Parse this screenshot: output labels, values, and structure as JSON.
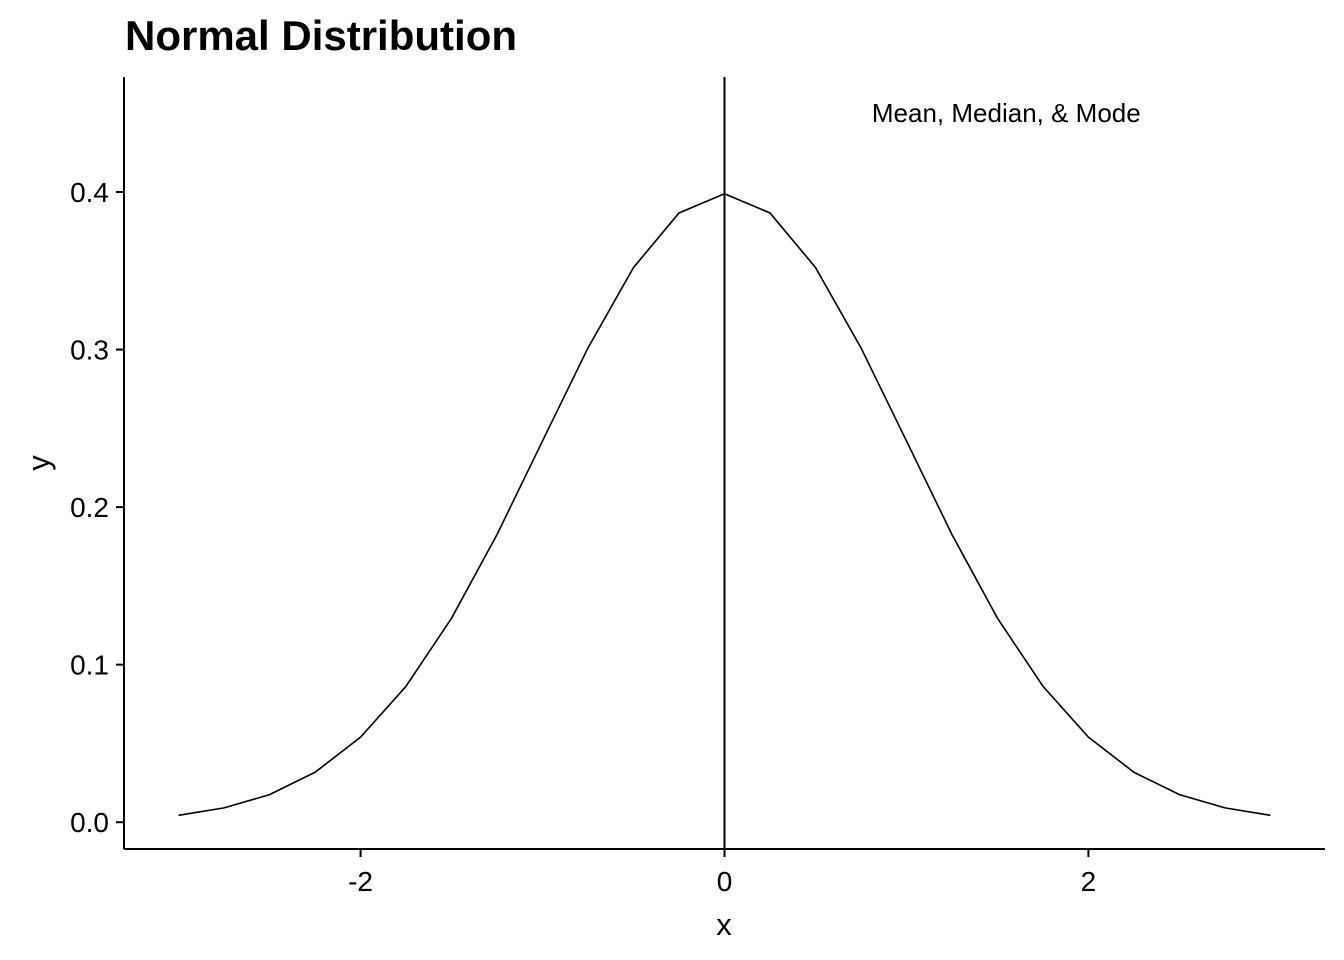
{
  "chart_data": {
    "type": "line",
    "title": "Normal Distribution",
    "xlabel": "x",
    "ylabel": "y",
    "xlim": [
      -3.3,
      3.3
    ],
    "ylim": [
      -0.017,
      0.473
    ],
    "x_ticks": [
      {
        "value": -2,
        "label": "-2"
      },
      {
        "value": 0,
        "label": "0"
      },
      {
        "value": 2,
        "label": "2"
      }
    ],
    "y_ticks": [
      {
        "value": 0.0,
        "label": "0.0"
      },
      {
        "value": 0.1,
        "label": "0.1"
      },
      {
        "value": 0.2,
        "label": "0.2"
      },
      {
        "value": 0.3,
        "label": "0.3"
      },
      {
        "value": 0.4,
        "label": "0.4"
      }
    ],
    "grid": false,
    "series": [
      {
        "x": [
          -3.0,
          -2.75,
          -2.5,
          -2.25,
          -2.0,
          -1.75,
          -1.5,
          -1.25,
          -1.0,
          -0.75,
          -0.5,
          -0.25,
          0.0,
          0.25,
          0.5,
          0.75,
          1.0,
          1.25,
          1.5,
          1.75,
          2.0,
          2.25,
          2.5,
          2.75,
          3.0
        ],
        "y": [
          0.0044,
          0.0091,
          0.0175,
          0.0317,
          0.054,
          0.0863,
          0.1295,
          0.1826,
          0.242,
          0.3011,
          0.3521,
          0.3867,
          0.3989,
          0.3867,
          0.3521,
          0.3011,
          0.242,
          0.1826,
          0.1295,
          0.0863,
          0.054,
          0.0317,
          0.0175,
          0.0091,
          0.0044
        ]
      }
    ],
    "vline": {
      "x": 0
    },
    "annotation": {
      "text": "Mean, Median, & Mode",
      "x": 0.81,
      "y": 0.45
    }
  }
}
